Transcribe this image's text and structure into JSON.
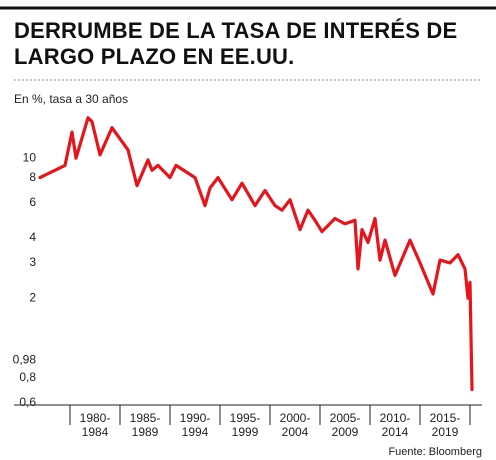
{
  "chart_data": {
    "type": "line",
    "title": "DERRUMBE DE LA TASA DE INTERÉS DE LARGO PLAZO EN EE.UU.",
    "subtitle": "En %, tasa a 30 años",
    "source": "Fuente: Bloomberg",
    "categories": [
      "1980-1984",
      "1985-1989",
      "1990-1994",
      "1995-1999",
      "2000-2004",
      "2005-2009",
      "2010-2014",
      "2015-2019"
    ],
    "x": [
      1977.0,
      1979.5,
      1980.2,
      1980.6,
      1981.8,
      1982.2,
      1983.0,
      1984.2,
      1985.8,
      1986.7,
      1987.8,
      1988.2,
      1988.8,
      1990.0,
      1990.6,
      1992.5,
      1993.5,
      1994.0,
      1994.8,
      1996.2,
      1997.2,
      1998.5,
      1999.5,
      2000.5,
      2001.2,
      2002.0,
      2003.0,
      2003.8,
      2004.5,
      2005.2,
      2006.5,
      2007.5,
      2008.5,
      2008.8,
      2009.2,
      2009.8,
      2010.5,
      2011.0,
      2011.5,
      2012.5,
      2014.0,
      2015.0,
      2016.3,
      2017.0,
      2018.0,
      2018.8,
      2019.5,
      2019.8,
      2020.0,
      2020.2
    ],
    "series": [
      {
        "color": "#e8141b",
        "values": [
          8.0,
          9.2,
          13.5,
          10.0,
          15.9,
          15.2,
          10.4,
          14.2,
          11.0,
          7.3,
          9.8,
          8.7,
          9.2,
          8.0,
          9.2,
          8.0,
          5.8,
          7.1,
          8.0,
          6.2,
          7.5,
          5.8,
          6.9,
          5.8,
          5.5,
          6.2,
          4.4,
          5.5,
          4.9,
          4.3,
          5.0,
          4.7,
          4.9,
          2.8,
          4.4,
          3.8,
          5.0,
          3.1,
          3.9,
          2.6,
          3.9,
          3.0,
          2.1,
          3.1,
          3.0,
          3.3,
          2.8,
          2.0,
          2.4,
          0.7
        ]
      }
    ],
    "xlim": [
      1977,
      2020.5
    ],
    "ylim": [
      0.6,
      17
    ],
    "log_scale_y": true,
    "yticks": [
      {
        "value": 0.6,
        "label": "0,6"
      },
      {
        "value": 0.8,
        "label": "0,8"
      },
      {
        "value": 0.98,
        "label": "0,98"
      },
      2,
      3,
      4,
      6,
      8,
      10
    ]
  }
}
